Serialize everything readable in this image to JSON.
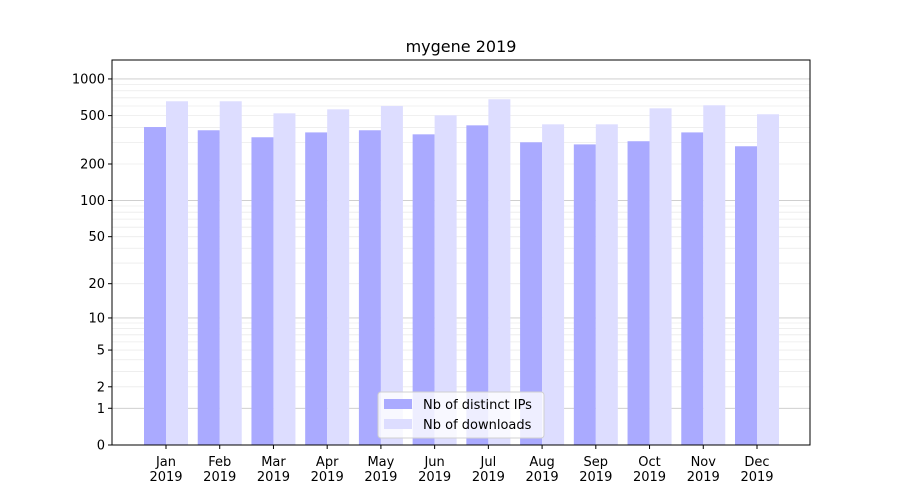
{
  "chart_data": {
    "type": "bar",
    "title": "mygene 2019",
    "xlabel": "",
    "ylabel": "",
    "yscale": "log(1+y)",
    "ylim": [
      0,
      1400
    ],
    "yticks": [
      0,
      1,
      2,
      5,
      10,
      20,
      50,
      100,
      200,
      500,
      1000
    ],
    "grid": true,
    "legend_position": "bottom-center",
    "categories": [
      "Jan\n2019",
      "Feb\n2019",
      "Mar\n2019",
      "Apr\n2019",
      "May\n2019",
      "Jun\n2019",
      "Jul\n2019",
      "Aug\n2019",
      "Sep\n2019",
      "Oct\n2019",
      "Nov\n2019",
      "Dec\n2019"
    ],
    "series": [
      {
        "name": "Nb of distinct IPs",
        "color": "#aaaaff",
        "values": [
          403,
          379,
          332,
          364,
          379,
          351,
          416,
          302,
          290,
          308,
          364,
          280
        ]
      },
      {
        "name": "Nb of downloads",
        "color": "#ddddff",
        "values": [
          656,
          656,
          522,
          563,
          600,
          503,
          681,
          424,
          424,
          574,
          608,
          513
        ]
      }
    ]
  }
}
